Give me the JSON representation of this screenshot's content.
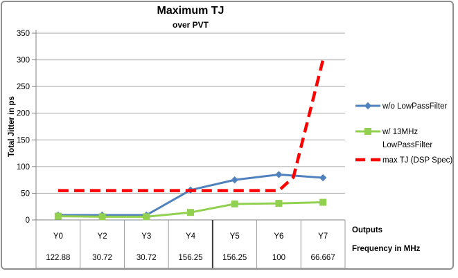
{
  "title": "Maximum TJ",
  "subtitle": "over PVT",
  "chart_data": {
    "type": "line",
    "title": "Maximum TJ",
    "subtitle": "over PVT",
    "ylabel": "Total Jitter in ps",
    "ylim": [
      0,
      350
    ],
    "yticks": [
      0,
      50,
      100,
      150,
      200,
      250,
      300,
      350
    ],
    "grid": true,
    "legend_position": "right",
    "categories": [
      "Y0",
      "Y2",
      "Y3",
      "Y4",
      "Y5",
      "Y6",
      "Y7"
    ],
    "frequencies_mhz": [
      "122.88",
      "30.72",
      "30.72",
      "156.25",
      "156.25",
      "100",
      "66.667"
    ],
    "series": [
      {
        "name": "w/o LowPassFilter",
        "legend_lines": [
          "w/o LowPassFilter"
        ],
        "marker": "diamond",
        "dashed": false,
        "color": "#4F81BD",
        "values": [
          9,
          9,
          9,
          56,
          75,
          85,
          79
        ]
      },
      {
        "name": "w/ 13MHz LowPassFilter",
        "legend_lines": [
          "w/ 13MHz",
          "LowPassFilter"
        ],
        "marker": "square",
        "dashed": false,
        "color": "#92D050",
        "values": [
          7,
          6,
          6,
          14,
          30,
          31,
          33
        ]
      },
      {
        "name": "max TJ (DSP Spec)",
        "legend_lines": [
          "max TJ (DSP Spec)"
        ],
        "marker": "none",
        "dashed": true,
        "color": "#FF0000",
        "values": [
          55,
          55,
          55,
          55,
          55,
          55,
          300
        ],
        "path_points": [
          [
            0,
            55
          ],
          [
            5,
            55
          ],
          [
            5.33,
            80
          ],
          [
            6,
            300
          ]
        ]
      }
    ]
  },
  "table": {
    "row1_label": "Outputs",
    "row2_label": "Frequency in MHz",
    "heavy_divider_after_column": 3
  },
  "colors": {
    "series_blue": "#4F81BD",
    "series_green": "#92D050",
    "series_red": "#FF0000",
    "gridline": "#a6a6a6",
    "axis": "#808080",
    "table_line": "#9a9a9a",
    "heavy_line": "#3a3a3a",
    "frame_border": "#8e8e8e",
    "text": "#000000"
  }
}
